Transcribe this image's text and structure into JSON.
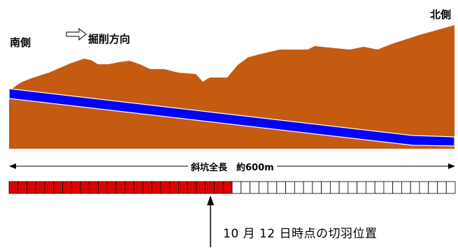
{
  "labels": {
    "south": "南側",
    "north": "北側",
    "direction": "掘削方向",
    "length": "斜坑全長　約600m",
    "face_position": "10 月 12 日時点の切羽位置"
  },
  "progress": {
    "segments_total": 50,
    "segments_excavated": 25
  },
  "colors": {
    "ground": "#C55A11",
    "shaft": "#0000FF",
    "excavated": "#E00000",
    "remaining": "#FFFFFF"
  }
}
